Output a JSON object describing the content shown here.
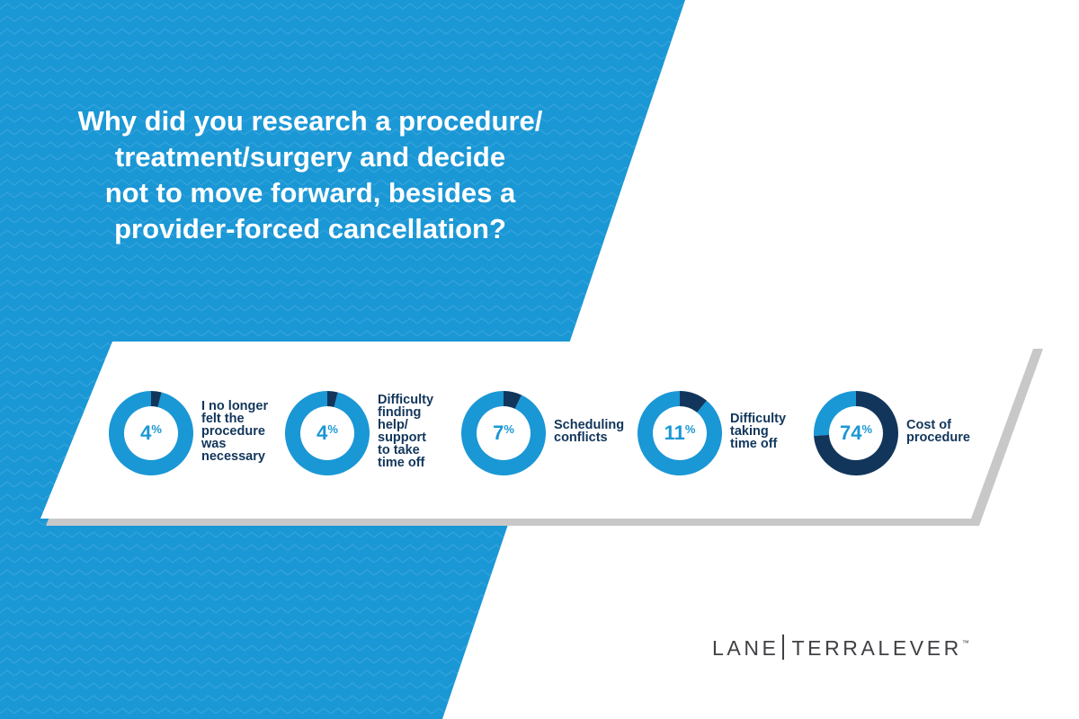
{
  "title_lines": [
    "Why did you research a procedure/",
    "treatment/surgery and decide",
    "not to move forward, besides a",
    "provider-forced cancellation?"
  ],
  "colors": {
    "background_blue": "#1a97d5",
    "pattern_blue": "#2d9fda",
    "donut_light": "#1a97d5",
    "donut_dark": "#12365b",
    "label_text": "#12365b",
    "panel": "#ffffff",
    "panel_shadow": "#c8c8c8"
  },
  "chart_data": {
    "type": "pie",
    "style": "donut",
    "categories": [
      "I no longer felt the procedure was necessary",
      "Difficulty finding help/ support to take time off",
      "Scheduling conflicts",
      "Difficulty taking time off",
      "Cost of procedure"
    ],
    "values": [
      4,
      4,
      7,
      11,
      74
    ],
    "unit": "%",
    "items": [
      {
        "value": 4,
        "number": "4",
        "suffix": "%",
        "label_lines": [
          "I no longer",
          "felt the",
          "procedure",
          "was",
          "necessary"
        ]
      },
      {
        "value": 4,
        "number": "4",
        "suffix": "%",
        "label_lines": [
          "Difficulty",
          "finding",
          "help/",
          "support",
          "to take",
          "time off"
        ]
      },
      {
        "value": 7,
        "number": "7",
        "suffix": "%",
        "label_lines": [
          "Scheduling",
          "conflicts"
        ]
      },
      {
        "value": 11,
        "number": "11",
        "suffix": "%",
        "label_lines": [
          "Difficulty",
          "taking",
          "time off"
        ]
      },
      {
        "value": 74,
        "number": "74",
        "suffix": "%",
        "label_lines": [
          "Cost of",
          "procedure"
        ]
      }
    ]
  },
  "logo": {
    "left": "LANE",
    "right": "TERRALEVER",
    "mark": "™"
  }
}
